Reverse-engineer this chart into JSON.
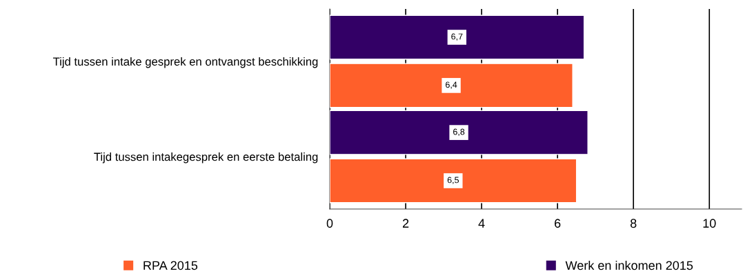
{
  "chart_data": {
    "type": "bar",
    "orientation": "horizontal",
    "categories": [
      "Tijd tussen intake gesprek en ontvangst beschikking",
      "Tijd tussen intakegesprek en eerste betaling"
    ],
    "series": [
      {
        "name": "RPA 2015",
        "color": "#ff5f2a",
        "values": [
          6.4,
          6.5
        ],
        "value_labels": [
          "6,4",
          "6,5"
        ]
      },
      {
        "name": "Werk en inkomen 2015",
        "color": "#330066",
        "values": [
          6.7,
          6.8
        ],
        "value_labels": [
          "6,7",
          "6,8"
        ]
      }
    ],
    "xlim": [
      0,
      10.85
    ],
    "xticks": [
      0,
      2,
      4,
      6,
      8,
      10
    ],
    "grid": "x",
    "legend": "bottom"
  }
}
